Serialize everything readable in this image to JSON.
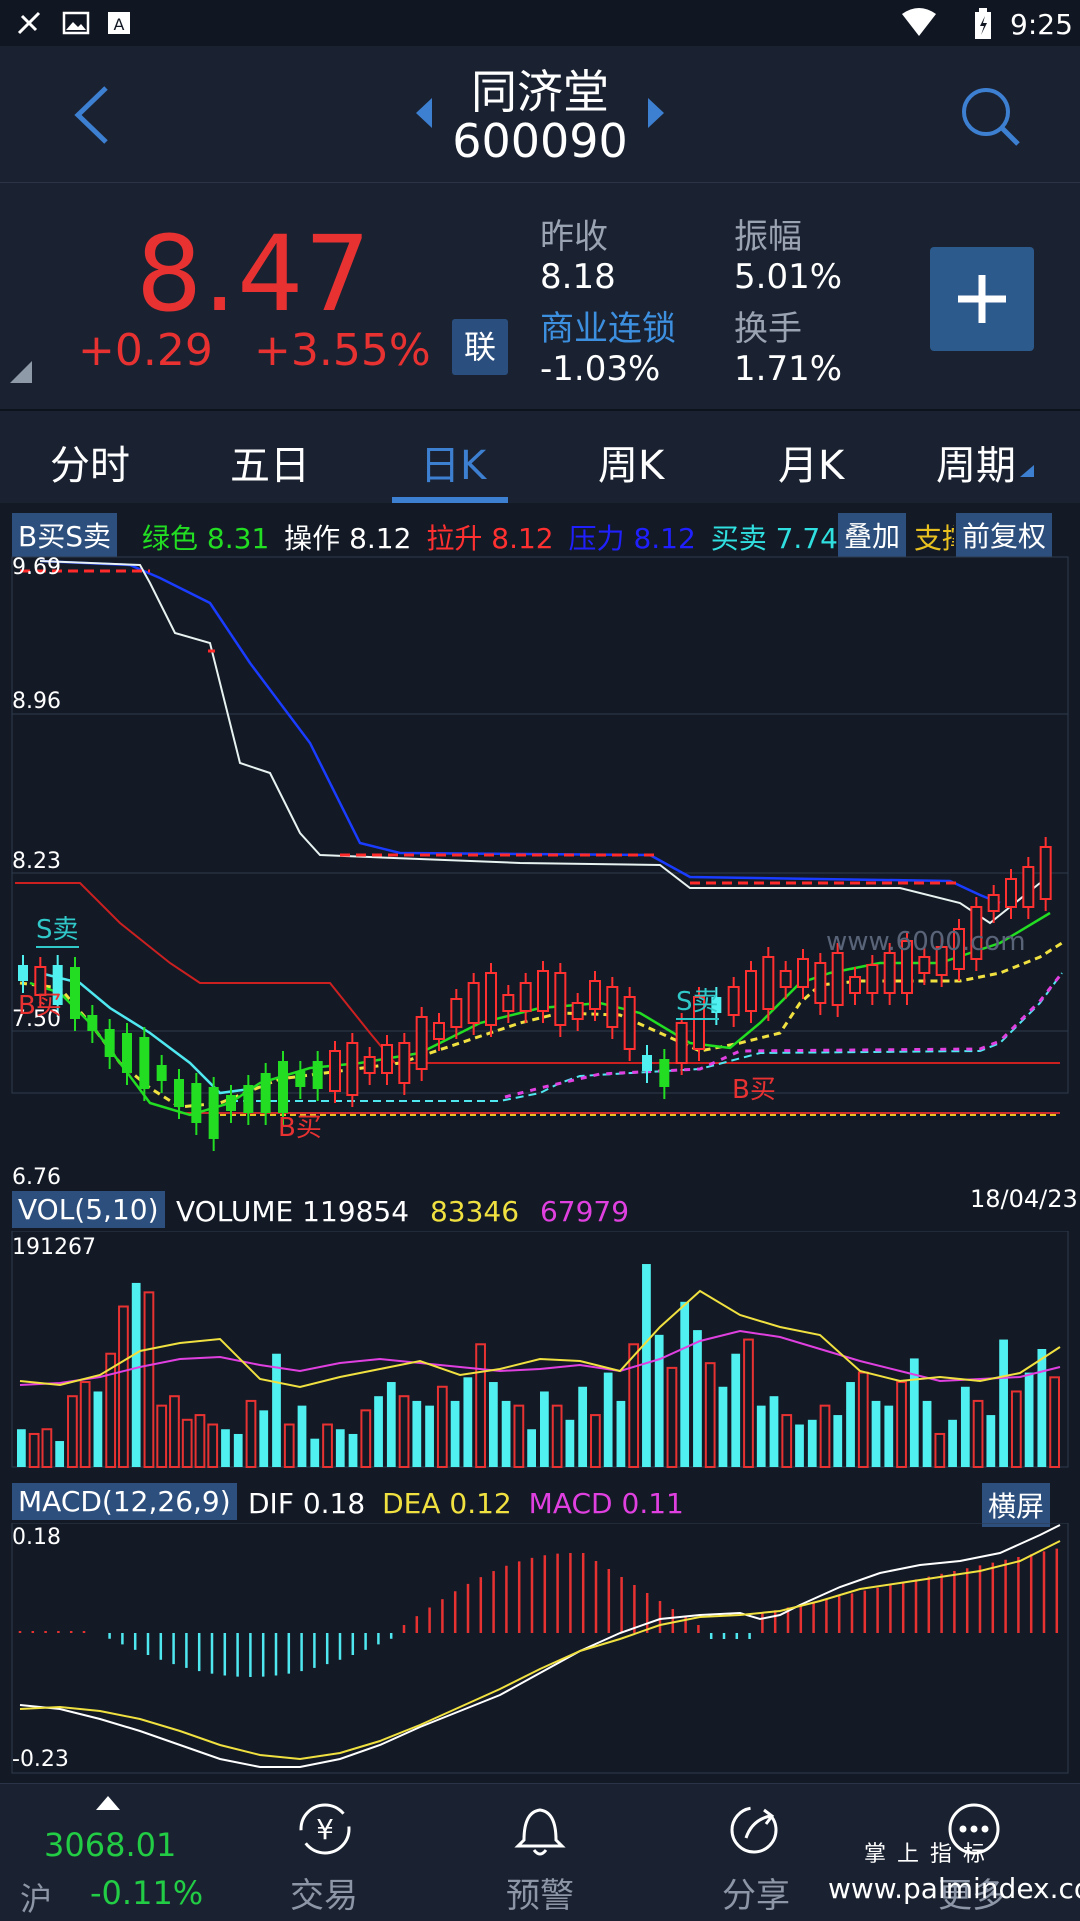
{
  "status_bar": {
    "time": "9:25"
  },
  "header": {
    "name": "同济堂",
    "code": "600090"
  },
  "quote": {
    "price": "8.47",
    "change": "+0.29",
    "change_pct": "+3.55%",
    "lian": "联",
    "prev_close_label": "昨收",
    "prev_close": "8.18",
    "amplitude_label": "振幅",
    "amplitude": "5.01%",
    "sector_label": "商业连锁",
    "sector_change": "-1.03%",
    "turnover_label": "换手",
    "turnover": "1.71%"
  },
  "tabs": [
    {
      "label": "分时"
    },
    {
      "label": "五日"
    },
    {
      "label": "日K",
      "active": true
    },
    {
      "label": "周K"
    },
    {
      "label": "月K"
    },
    {
      "label": "周期"
    }
  ],
  "indicator": {
    "name": "B买S卖",
    "items": [
      {
        "label": "绿色",
        "value": "8.31",
        "color": "#22dd22"
      },
      {
        "label": "操作",
        "value": "8.12",
        "color": "#ffffff"
      },
      {
        "label": "拉升",
        "value": "8.12",
        "color": "#ff3030"
      },
      {
        "label": "压力",
        "value": "8.12",
        "color": "#2020ff"
      },
      {
        "label": "买卖",
        "value": "7.74",
        "color": "#30e0e0"
      }
    ],
    "overlay_label": "叠加",
    "hidden_label": "支撑",
    "adjust_label": "前复权"
  },
  "kline": {
    "y_labels": [
      "9.69",
      "8.96",
      "8.23",
      "7.50",
      "6.76"
    ],
    "annotations": [
      {
        "text": "S卖",
        "color": "#30c8c8"
      },
      {
        "text": "B买",
        "color": "#e83232"
      },
      {
        "text": "B买",
        "color": "#e83232"
      },
      {
        "text": "S卖",
        "color": "#30c8c8"
      },
      {
        "text": "B买",
        "color": "#e83232"
      }
    ],
    "watermark": "www.6000.com",
    "date": "18/04/23"
  },
  "volume": {
    "name": "VOL(5,10)",
    "label": "VOLUME",
    "value": "119854",
    "ma5": "83346",
    "ma10": "67979",
    "max_label": "191267",
    "values": [
      0.16,
      0.14,
      0.16,
      0.11,
      0.3,
      0.36,
      0.32,
      0.48,
      0.68,
      0.78,
      0.74,
      0.26,
      0.3,
      0.2,
      0.22,
      0.18,
      0.16,
      0.14,
      0.28,
      0.24,
      0.48,
      0.18,
      0.26,
      0.12,
      0.18,
      0.16,
      0.14,
      0.24,
      0.3,
      0.36,
      0.3,
      0.28,
      0.26,
      0.34,
      0.28,
      0.38,
      0.52,
      0.36,
      0.28,
      0.26,
      0.16,
      0.32,
      0.26,
      0.2,
      0.34,
      0.22,
      0.4,
      0.28,
      0.52,
      0.86,
      0.56,
      0.42,
      0.7,
      0.58,
      0.44,
      0.34,
      0.48,
      0.54,
      0.26,
      0.3,
      0.22,
      0.18,
      0.2,
      0.26,
      0.22,
      0.36,
      0.4,
      0.28,
      0.26,
      0.36,
      0.46,
      0.28,
      0.14,
      0.2,
      0.34,
      0.28,
      0.22,
      0.54,
      0.32,
      0.4,
      0.5,
      0.38
    ]
  },
  "macd": {
    "name": "MACD(12,26,9)",
    "dif_label": "DIF",
    "dif": "0.18",
    "dea_label": "DEA",
    "dea": "0.12",
    "macd_label": "MACD",
    "macd": "0.11",
    "landscape_label": "横屏",
    "y_top": "0.18",
    "y_bottom": "-0.23"
  },
  "bottom_nav": {
    "index_value": "3068.01",
    "index_name": "沪",
    "index_change": "-0.11%",
    "items": [
      {
        "label": "交易"
      },
      {
        "label": "预警"
      },
      {
        "label": "分享"
      },
      {
        "label": "更多"
      }
    ],
    "watermark_top": "掌 上 指 标",
    "watermark_bottom": "www.palmindex.com"
  }
}
